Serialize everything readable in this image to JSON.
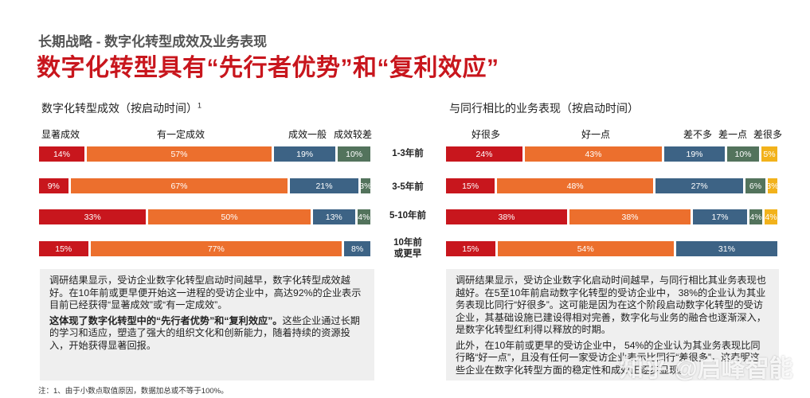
{
  "header": {
    "subtitle": "长期战略 - 数字化转型成效及业务表现",
    "title": "数字化转型具有“先行者优势”和“复利效应”"
  },
  "colors": {
    "red": "#c8161d",
    "orange": "#ec6f2d",
    "blue": "#3d6385",
    "green": "#53735c",
    "yellow": "#f2b21b"
  },
  "chart_data": [
    {
      "type": "bar",
      "stacked": true,
      "orientation": "horizontal",
      "title": "数字化转型成效（按启动时间）",
      "title_sup": "1",
      "categories": [
        "1-3年前",
        "3-5年前",
        "5-10年前",
        "10年前或更早"
      ],
      "series": [
        {
          "name": "显著成效",
          "values": [
            14,
            9,
            33,
            15
          ]
        },
        {
          "name": "有一定成效",
          "values": [
            57,
            67,
            50,
            77
          ]
        },
        {
          "name": "成效一般",
          "values": [
            19,
            21,
            13,
            8
          ]
        },
        {
          "name": "成效较差",
          "values": [
            10,
            3,
            4,
            0
          ]
        }
      ]
    },
    {
      "type": "bar",
      "stacked": true,
      "orientation": "horizontal",
      "title": "与同行相比的业务表现（按启动时间）",
      "categories": [
        "1-3年前",
        "3-5年前",
        "5-10年前",
        "10年前或更早"
      ],
      "series": [
        {
          "name": "好很多",
          "values": [
            24,
            15,
            38,
            15
          ]
        },
        {
          "name": "好一点",
          "values": [
            43,
            48,
            38,
            54
          ]
        },
        {
          "name": "差不多",
          "values": [
            19,
            27,
            17,
            31
          ]
        },
        {
          "name": "差一点",
          "values": [
            10,
            6,
            4,
            0
          ]
        },
        {
          "name": "差很多",
          "values": [
            5,
            3,
            4,
            0
          ]
        }
      ]
    }
  ],
  "row_labels": [
    "1-3年前",
    "3-5年前",
    "5-10年前",
    "10年前",
    "或更早"
  ],
  "notes": {
    "left": {
      "p1": "调研结果显示，受访企业数字化转型启动时间越早，数字化转型成效越好。在10年前或更早便开始这一进程的受访企业中，高达92%的企业表示目前已经获得“显著成效”或“有一定成效”。",
      "p2_bold": "这体现了数字化转型中的“先行者优势”和“复利效应”。",
      "p2_rest": "这些企业通过长期的学习和适应，塑造了强大的组织文化和创新能力，随着持续的资源投入，开始获得显著回报。"
    },
    "right": {
      "p1": "调研结果显示，受访企业数字化启动时间越早，与同行相比其业务表现也越好。在5至10年前启动数字化转型的受访企业中， 38%的企业认为其业务表现比同行“好很多”。这可能是因为在这个阶段启动数字化转型的受访企业，其基础设施已建设得相对完善，数字化与业务的融合也逐渐深入，是数字化转型红利得以释放的时期。",
      "p2": "此外，在10年前或更早的受访企业中， 54%的企业认为其业务表现比同行略“好一点”，且没有任何一家受访企业表示比同行“差很多”，这表明这些企业在数字化转型方面的稳定性和成效正逐步显现。"
    }
  },
  "footnote": "注：1、由于小数点取值原因，数据加总或不等于100%。",
  "watermark": "知乎 @启峰智能"
}
